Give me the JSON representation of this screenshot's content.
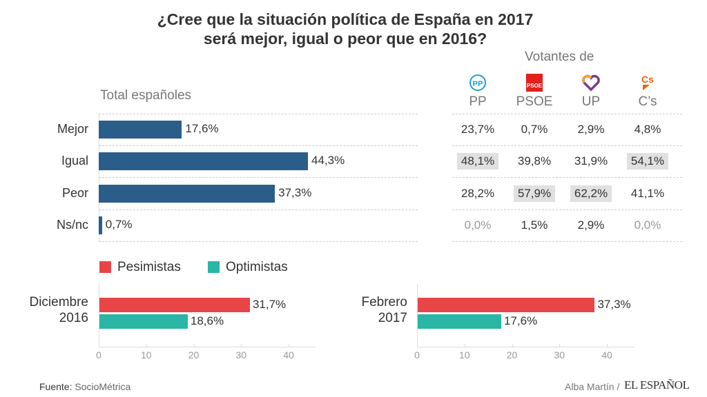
{
  "title_line1": "¿Cree que la situación política de España en 2017",
  "title_line2": "será mejor, igual o peor que en 2016?",
  "colors": {
    "main_bar": "#2b5d8a",
    "pesimistas": "#e84546",
    "optimistas": "#2ab5a5",
    "highlight": "#e0e0e0"
  },
  "chart_data": [
    {
      "type": "bar",
      "title": "Total españoles",
      "categories": [
        "Mejor",
        "Igual",
        "Peor",
        "Ns/nc"
      ],
      "values": [
        17.6,
        44.3,
        37.3,
        0.7
      ],
      "value_labels": [
        "17,6%",
        "44,3%",
        "37,3%",
        "0,7%"
      ],
      "xlim": [
        0,
        50
      ]
    },
    {
      "type": "table",
      "title": "Votantes de",
      "columns": [
        {
          "name": "PP",
          "icon": "pp-logo-icon"
        },
        {
          "name": "PSOE",
          "icon": "psoe-logo-icon"
        },
        {
          "name": "UP",
          "icon": "up-heart-icon"
        },
        {
          "name": "C's",
          "icon": "cs-logo-icon"
        }
      ],
      "column_labels": [
        "PP",
        "PSOE",
        "UP",
        "C’s"
      ],
      "rows": [
        {
          "category": "Mejor",
          "values": [
            "23,7%",
            "0,7%",
            "2,9%",
            "4,8%"
          ],
          "highlight": [
            false,
            false,
            false,
            false
          ],
          "muted": [
            false,
            false,
            false,
            false
          ]
        },
        {
          "category": "Igual",
          "values": [
            "48,1%",
            "39,8%",
            "31,9%",
            "54,1%"
          ],
          "highlight": [
            true,
            false,
            false,
            true
          ],
          "muted": [
            false,
            false,
            false,
            false
          ]
        },
        {
          "category": "Peor",
          "values": [
            "28,2%",
            "57,9%",
            "62,2%",
            "41,1%"
          ],
          "highlight": [
            false,
            true,
            true,
            false
          ],
          "muted": [
            false,
            false,
            false,
            false
          ]
        },
        {
          "category": "Ns/nc",
          "values": [
            "0,0%",
            "1,5%",
            "2,9%",
            "0,0%"
          ],
          "highlight": [
            false,
            false,
            false,
            false
          ],
          "muted": [
            true,
            false,
            false,
            true
          ]
        }
      ]
    },
    {
      "type": "bar",
      "category": [
        "Diciembre",
        "2016"
      ],
      "series": [
        {
          "name": "Pesimistas",
          "value": 31.7,
          "label": "31,7%"
        },
        {
          "name": "Optimistas",
          "value": 18.6,
          "label": "18,6%"
        }
      ],
      "xlim": [
        0,
        45
      ],
      "ticks": [
        0,
        10,
        20,
        30,
        40
      ]
    },
    {
      "type": "bar",
      "category": [
        "Febrero",
        "2017"
      ],
      "series": [
        {
          "name": "Pesimistas",
          "value": 37.3,
          "label": "37,3%"
        },
        {
          "name": "Optimistas",
          "value": 17.6,
          "label": "17,6%"
        }
      ],
      "xlim": [
        0,
        45
      ],
      "ticks": [
        0,
        10,
        20,
        30,
        40
      ]
    }
  ],
  "legend": [
    "Pesimistas",
    "Optimistas"
  ],
  "footer": {
    "source_label": "Fuente:",
    "source": "SocioMétrica",
    "author": "Alba Martín /",
    "brand": "EL ESPAÑOL"
  }
}
